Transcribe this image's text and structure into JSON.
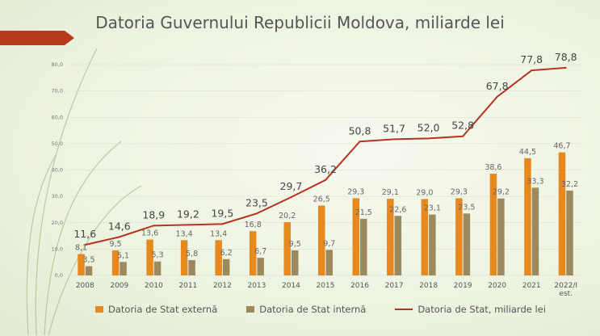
{
  "title": "Datoria Guvernului Republicii Moldova, miliarde lei",
  "colors": {
    "externa": "#e68a1f",
    "interna": "#9c8a5e",
    "total": "#b5331f",
    "accent": "#b83a1e",
    "grid": "#d8dccd"
  },
  "chart_data": {
    "type": "bar",
    "categories": [
      "2008",
      "2009",
      "2010",
      "2011",
      "2012",
      "2013",
      "2014",
      "2015",
      "2016",
      "2017",
      "2018",
      "2019",
      "2020",
      "2021",
      "2022/I est."
    ],
    "ylim": [
      0,
      80
    ],
    "yticks": [
      "0,0",
      "10,0",
      "20,0",
      "30,0",
      "40,0",
      "50,0",
      "60,0",
      "70,0",
      "80,0"
    ],
    "grid": true,
    "legend_position": "bottom",
    "series": [
      {
        "name": "Datoria de Stat externă",
        "type": "bar",
        "values": [
          8.1,
          9.5,
          13.6,
          13.4,
          13.4,
          16.8,
          20.2,
          26.5,
          29.3,
          29.1,
          29.0,
          29.3,
          38.6,
          44.5,
          46.7
        ],
        "labels": [
          "8,1",
          "9,5",
          "13,6",
          "13,4",
          "13,4",
          "16,8",
          "20,2",
          "26,5",
          "29,3",
          "29,1",
          "29,0",
          "29,3",
          "38,6",
          "44,5",
          "46,7"
        ]
      },
      {
        "name": "Datoria de Stat internă",
        "type": "bar",
        "values": [
          3.5,
          5.1,
          5.3,
          5.8,
          6.2,
          6.7,
          9.5,
          9.7,
          21.5,
          22.6,
          23.1,
          23.5,
          29.2,
          33.3,
          32.2
        ],
        "labels": [
          "3,5",
          "5,1",
          "5,3",
          "5,8",
          "6,2",
          "6,7",
          "9,5",
          "9,7",
          "21,5",
          "22,6",
          "23,1",
          "23,5",
          "29,2",
          "33,3",
          "32,2"
        ]
      },
      {
        "name": "Datoria de Stat, miliarde lei",
        "type": "line",
        "values": [
          11.6,
          14.6,
          18.9,
          19.2,
          19.5,
          23.5,
          29.7,
          36.2,
          50.8,
          51.7,
          52.0,
          52.8,
          67.8,
          77.8,
          78.8
        ],
        "labels": [
          "11,6",
          "14,6",
          "18,9",
          "19,2",
          "19,5",
          "23,5",
          "29,7",
          "36,2",
          "50,8",
          "51,7",
          "52,0",
          "52,8",
          "67,8",
          "77,8",
          "78,8"
        ]
      }
    ]
  }
}
